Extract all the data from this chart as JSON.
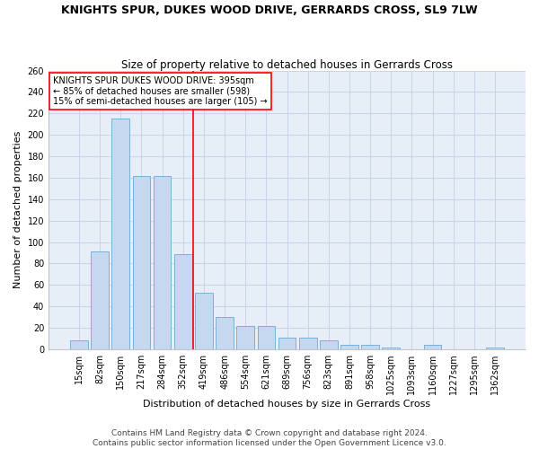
{
  "title": "KNIGHTS SPUR, DUKES WOOD DRIVE, GERRARDS CROSS, SL9 7LW",
  "subtitle": "Size of property relative to detached houses in Gerrards Cross",
  "xlabel": "Distribution of detached houses by size in Gerrards Cross",
  "ylabel": "Number of detached properties",
  "categories": [
    "15sqm",
    "82sqm",
    "150sqm",
    "217sqm",
    "284sqm",
    "352sqm",
    "419sqm",
    "486sqm",
    "554sqm",
    "621sqm",
    "689sqm",
    "756sqm",
    "823sqm",
    "891sqm",
    "958sqm",
    "1025sqm",
    "1093sqm",
    "1160sqm",
    "1227sqm",
    "1295sqm",
    "1362sqm"
  ],
  "values": [
    8,
    91,
    215,
    162,
    162,
    89,
    53,
    30,
    22,
    22,
    11,
    11,
    8,
    4,
    4,
    2,
    0,
    4,
    0,
    0,
    2
  ],
  "bar_color": "#c5d8f0",
  "bar_edge_color": "#6aaad4",
  "vline_x": 5.5,
  "vline_color": "red",
  "annotation_text": "KNIGHTS SPUR DUKES WOOD DRIVE: 395sqm\n← 85% of detached houses are smaller (598)\n15% of semi-detached houses are larger (105) →",
  "annotation_box_color": "white",
  "annotation_box_edge": "red",
  "ylim": [
    0,
    260
  ],
  "yticks": [
    0,
    20,
    40,
    60,
    80,
    100,
    120,
    140,
    160,
    180,
    200,
    220,
    240,
    260
  ],
  "footer_line1": "Contains HM Land Registry data © Crown copyright and database right 2024.",
  "footer_line2": "Contains public sector information licensed under the Open Government Licence v3.0.",
  "bg_color": "#e8eef8",
  "grid_color": "#c8d4e8",
  "title_fontsize": 9,
  "subtitle_fontsize": 8.5,
  "xlabel_fontsize": 8,
  "ylabel_fontsize": 8,
  "tick_fontsize": 7,
  "footer_fontsize": 6.5,
  "annot_fontsize": 7
}
